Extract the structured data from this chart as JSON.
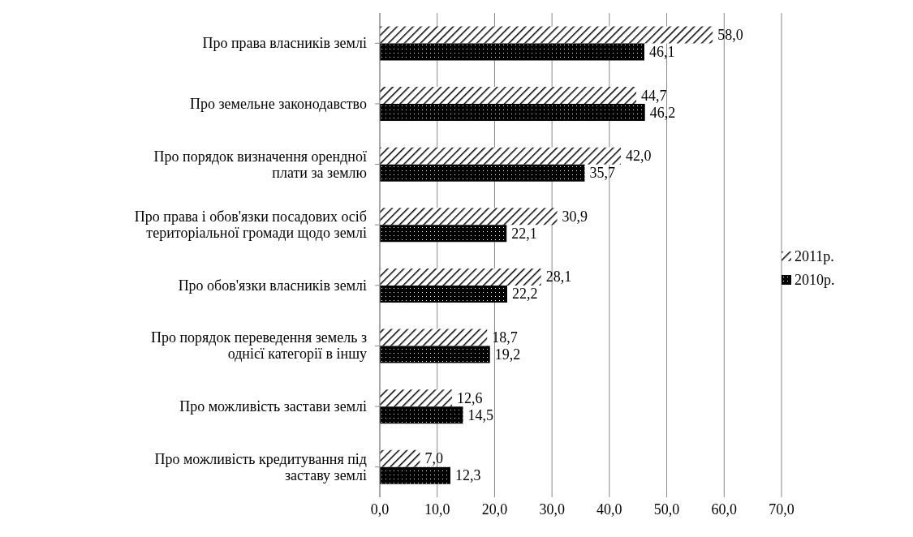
{
  "chart_data": {
    "type": "bar",
    "orientation": "horizontal",
    "categories": [
      "Про права власників землі",
      "Про земельне законодавство",
      "Про порядок визначення орендної плати за землю",
      "Про права і обов'язки посадових осіб територіальної громади щодо землі",
      "Про обов'язки власників землі",
      "Про порядок переведення земель з однієї категорії в іншу",
      "Про можливість застави землі",
      "Про можливість кредитування під заставу землі"
    ],
    "series": [
      {
        "name": "2011р.",
        "color": "#000000",
        "values": [
          58.0,
          44.7,
          42.0,
          30.9,
          28.1,
          18.7,
          12.6,
          7.0
        ],
        "value_labels": [
          "58,0",
          "44,7",
          "42,0",
          "30,9",
          "28,1",
          "18,7",
          "12,6",
          "7,0"
        ]
      },
      {
        "name": "2010р.",
        "color": "#000000",
        "values": [
          46.1,
          46.2,
          35.7,
          22.1,
          22.2,
          19.2,
          14.5,
          12.3
        ],
        "value_labels": [
          "46,1",
          "46,2",
          "35,7",
          "22,1",
          "22,2",
          "19,2",
          "14,5",
          "12,3"
        ]
      }
    ],
    "xlim": [
      0,
      70
    ],
    "xticks": [
      {
        "value": 0,
        "label": "0,0"
      },
      {
        "value": 10,
        "label": "10,0"
      },
      {
        "value": 20,
        "label": "20,0"
      },
      {
        "value": 30,
        "label": "30,0"
      },
      {
        "value": 40,
        "label": "40,0"
      },
      {
        "value": 50,
        "label": "50,0"
      },
      {
        "value": 60,
        "label": "60,0"
      },
      {
        "value": 70,
        "label": "70,0"
      }
    ],
    "grid": "x",
    "legend": "right"
  }
}
